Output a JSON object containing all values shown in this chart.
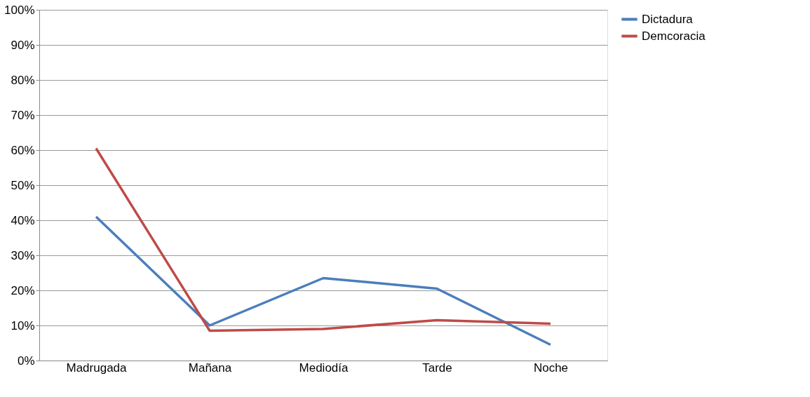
{
  "chart_data": {
    "type": "line",
    "categories": [
      "Madrugada",
      "Mañana",
      "Mediodía",
      "Tarde",
      "Noche"
    ],
    "series": [
      {
        "name": "Dictadura",
        "color": "#4a7ebb",
        "values": [
          41,
          10,
          23.5,
          20.5,
          4.5
        ]
      },
      {
        "name": "Demcoracia",
        "color": "#be4b48",
        "values": [
          60.5,
          8.5,
          9,
          11.5,
          10.5
        ]
      }
    ],
    "ylim": [
      0,
      100
    ],
    "yticks": [
      {
        "value": 0,
        "label": "0%"
      },
      {
        "value": 10,
        "label": "10%"
      },
      {
        "value": 20,
        "label": "20%"
      },
      {
        "value": 30,
        "label": "30%"
      },
      {
        "value": 40,
        "label": "40%"
      },
      {
        "value": 50,
        "label": "50%"
      },
      {
        "value": 60,
        "label": "60%"
      },
      {
        "value": 70,
        "label": "70%"
      },
      {
        "value": 80,
        "label": "80%"
      },
      {
        "value": 90,
        "label": "90%"
      },
      {
        "value": 100,
        "label": "100%"
      }
    ],
    "grid": "y",
    "legend": "right",
    "marker": "none",
    "line_style": "solid"
  }
}
